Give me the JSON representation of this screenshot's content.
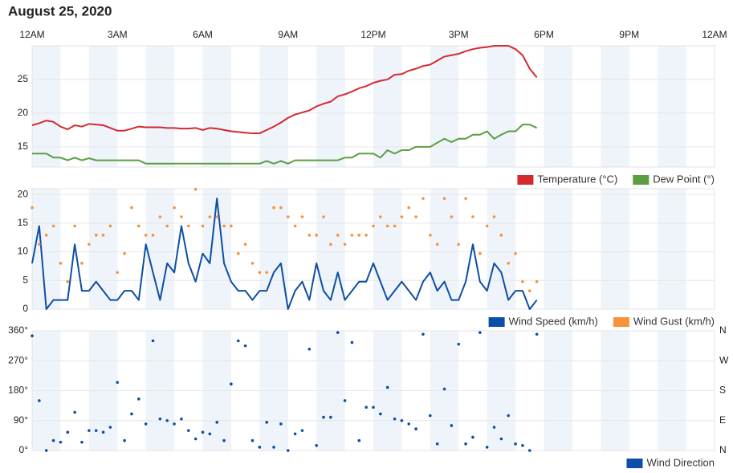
{
  "chart_data": [
    {
      "type": "line",
      "title": "August 25, 2020",
      "xlim": [
        0,
        24
      ],
      "xticks": [
        {
          "value": 0,
          "label": "12AM"
        },
        {
          "value": 3,
          "label": "3AM"
        },
        {
          "value": 6,
          "label": "6AM"
        },
        {
          "value": 9,
          "label": "9AM"
        },
        {
          "value": 12,
          "label": "12PM"
        },
        {
          "value": 15,
          "label": "3PM"
        },
        {
          "value": 18,
          "label": "6PM"
        },
        {
          "value": 21,
          "label": "9PM"
        },
        {
          "value": 24,
          "label": "12AM"
        }
      ],
      "ylim": [
        12,
        30
      ],
      "yticks": [
        15,
        20,
        25
      ],
      "grid": true,
      "legend": "bottom-right",
      "x": [
        0,
        0.25,
        0.5,
        0.75,
        1,
        1.25,
        1.5,
        1.75,
        2,
        2.25,
        2.5,
        2.75,
        3,
        3.25,
        3.5,
        3.75,
        4,
        4.25,
        4.5,
        4.75,
        5,
        5.25,
        5.5,
        5.75,
        6,
        6.25,
        6.5,
        6.75,
        7,
        7.25,
        7.5,
        7.75,
        8,
        8.25,
        8.5,
        8.75,
        9,
        9.25,
        9.5,
        9.75,
        10,
        10.25,
        10.5,
        10.75,
        11,
        11.25,
        11.5,
        11.75,
        12,
        12.25,
        12.5,
        12.75,
        13,
        13.25,
        13.5,
        13.75,
        14,
        14.25,
        14.5,
        14.75,
        15,
        15.25,
        15.5,
        15.75,
        16,
        16.25,
        16.5,
        16.75,
        17,
        17.25,
        17.5,
        17.75
      ],
      "series": [
        {
          "name": "Temperature (°C)",
          "color": "#d42a2f",
          "type": "line",
          "values": [
            18.2,
            18.5,
            18.9,
            18.7,
            18.0,
            17.6,
            18.2,
            18.0,
            18.4,
            18.3,
            18.2,
            17.8,
            17.4,
            17.4,
            17.7,
            18.0,
            17.9,
            17.9,
            17.9,
            17.8,
            17.8,
            17.7,
            17.7,
            17.8,
            17.5,
            17.8,
            17.7,
            17.5,
            17.3,
            17.2,
            17.1,
            17.0,
            17.0,
            17.5,
            18.0,
            18.6,
            19.3,
            19.8,
            20.1,
            20.4,
            21.0,
            21.4,
            21.7,
            22.5,
            22.8,
            23.2,
            23.7,
            24.0,
            24.5,
            24.8,
            25.0,
            25.7,
            25.8,
            26.3,
            26.6,
            27.0,
            27.2,
            27.8,
            28.4,
            28.6,
            28.8,
            29.2,
            29.5,
            29.7,
            29.8,
            30.0,
            30.0,
            30.0,
            29.5,
            28.6,
            26.6,
            25.3
          ]
        },
        {
          "name": "Dew Point (°)",
          "color": "#5a9e44",
          "type": "line",
          "values": [
            14,
            14,
            14,
            13.4,
            13.4,
            13,
            13.4,
            13,
            13.3,
            13,
            13,
            13,
            13,
            13,
            13,
            13,
            12.5,
            12.5,
            12.5,
            12.5,
            12.5,
            12.5,
            12.5,
            12.5,
            12.5,
            12.5,
            12.5,
            12.5,
            12.5,
            12.5,
            12.5,
            12.5,
            12.5,
            12.9,
            12.5,
            12.9,
            12.5,
            13,
            13,
            13,
            13,
            13,
            13,
            13,
            13.4,
            13.4,
            14,
            14,
            14,
            13.4,
            14.5,
            14,
            14.5,
            14.5,
            15,
            15,
            15,
            15.6,
            16.2,
            15.7,
            16.2,
            16.2,
            16.8,
            16.8,
            17.3,
            16.2,
            16.8,
            17.3,
            17.3,
            18.3,
            18.3,
            17.8
          ]
        }
      ]
    },
    {
      "type": "line",
      "xlim": [
        0,
        24
      ],
      "ylim": [
        0,
        21
      ],
      "yticks": [
        0,
        5,
        10,
        15,
        20
      ],
      "grid": true,
      "legend": "bottom-right",
      "x": [
        0,
        0.25,
        0.5,
        0.75,
        1,
        1.25,
        1.5,
        1.75,
        2,
        2.25,
        2.5,
        2.75,
        3,
        3.25,
        3.5,
        3.75,
        4,
        4.25,
        4.5,
        4.75,
        5,
        5.25,
        5.5,
        5.75,
        6,
        6.25,
        6.5,
        6.75,
        7,
        7.25,
        7.5,
        7.75,
        8,
        8.25,
        8.5,
        8.75,
        9,
        9.25,
        9.5,
        9.75,
        10,
        10.25,
        10.5,
        10.75,
        11,
        11.25,
        11.5,
        11.75,
        12,
        12.25,
        12.5,
        12.75,
        13,
        13.25,
        13.5,
        13.75,
        14,
        14.25,
        14.5,
        14.75,
        15,
        15.25,
        15.5,
        15.75,
        16,
        16.25,
        16.5,
        16.75,
        17,
        17.25,
        17.5,
        17.75
      ],
      "series": [
        {
          "name": "Wind Speed (km/h)",
          "color": "#0d4ea6",
          "type": "line",
          "values": [
            8,
            14.5,
            0,
            1.6,
            1.6,
            1.6,
            11.3,
            3.2,
            3.2,
            4.8,
            3.2,
            1.6,
            1.6,
            3.2,
            3.2,
            1.6,
            11.3,
            6.4,
            1.6,
            8,
            6.4,
            14.5,
            8,
            4.8,
            9.7,
            8,
            19.3,
            8,
            4.8,
            3.2,
            3.2,
            1.6,
            3.2,
            3.2,
            6.4,
            8,
            0,
            3.2,
            4.8,
            1.6,
            8,
            3.2,
            1.6,
            6.4,
            1.6,
            3.2,
            4.8,
            4.8,
            8,
            4.8,
            1.6,
            3.2,
            4.8,
            3.2,
            1.6,
            4.8,
            6.4,
            3.2,
            4.8,
            1.6,
            1.6,
            4.8,
            11.3,
            4.8,
            3.2,
            8,
            6.4,
            1.6,
            3.2,
            3.2,
            0,
            1.6
          ]
        },
        {
          "name": "Wind Gust (km/h)",
          "color": "#f7923a",
          "type": "scatter",
          "values": [
            17.7,
            11.3,
            12.9,
            14.5,
            8,
            4.8,
            14.5,
            8,
            11.3,
            12.9,
            12.9,
            14.5,
            6.4,
            9.7,
            17.7,
            14.5,
            12.9,
            12.9,
            16.1,
            14.5,
            17.7,
            16.1,
            14.5,
            20.9,
            14.5,
            16.1,
            16.1,
            14.5,
            14.5,
            9.7,
            11.3,
            8,
            6.4,
            6.4,
            17.7,
            17.7,
            16.1,
            14.5,
            16.1,
            12.9,
            12.9,
            16.1,
            11.3,
            12.9,
            11.3,
            12.9,
            12.9,
            12.9,
            14.5,
            16.1,
            14.5,
            14.5,
            16.1,
            17.7,
            16.1,
            19.3,
            12.9,
            11.3,
            19.3,
            16.1,
            11.3,
            19.3,
            16.1,
            9.7,
            14.5,
            16.1,
            12.9,
            8,
            9.7,
            4.8,
            3.2,
            4.8
          ]
        }
      ]
    },
    {
      "type": "line",
      "xlim": [
        0,
        24
      ],
      "ylim": [
        0,
        360
      ],
      "yticks": [
        {
          "value": 0,
          "label": "0°"
        },
        {
          "value": 90,
          "label": "90°"
        },
        {
          "value": 180,
          "label": "180°"
        },
        {
          "value": 270,
          "label": "270°"
        },
        {
          "value": 360,
          "label": "360°"
        }
      ],
      "y2lim": [
        0,
        360
      ],
      "y2ticks": [
        {
          "value": 0,
          "label": "N"
        },
        {
          "value": 90,
          "label": "E"
        },
        {
          "value": 180,
          "label": "S"
        },
        {
          "value": 270,
          "label": "W"
        },
        {
          "value": 360,
          "label": "N"
        }
      ],
      "grid": true,
      "legend": "bottom-right",
      "x": [
        0,
        0.25,
        0.5,
        0.75,
        1,
        1.25,
        1.5,
        1.75,
        2,
        2.25,
        2.5,
        2.75,
        3,
        3.25,
        3.5,
        3.75,
        4,
        4.25,
        4.5,
        4.75,
        5,
        5.25,
        5.5,
        5.75,
        6,
        6.25,
        6.5,
        6.75,
        7,
        7.25,
        7.5,
        7.75,
        8,
        8.25,
        8.5,
        8.75,
        9,
        9.25,
        9.5,
        9.75,
        10,
        10.25,
        10.5,
        10.75,
        11,
        11.25,
        11.5,
        11.75,
        12,
        12.25,
        12.5,
        12.75,
        13,
        13.25,
        13.5,
        13.75,
        14,
        14.25,
        14.5,
        14.75,
        15,
        15.25,
        15.5,
        15.75,
        16,
        16.25,
        16.5,
        16.75,
        17,
        17.25,
        17.5,
        17.75
      ],
      "series": [
        {
          "name": "Wind Direction",
          "color": "#0d4ea6",
          "type": "scatter",
          "values": [
            345,
            150,
            0,
            30,
            25,
            55,
            115,
            25,
            60,
            60,
            55,
            70,
            205,
            30,
            110,
            155,
            80,
            330,
            95,
            90,
            80,
            95,
            60,
            35,
            55,
            50,
            85,
            30,
            200,
            330,
            315,
            30,
            10,
            85,
            10,
            80,
            0,
            50,
            60,
            305,
            15,
            100,
            100,
            355,
            150,
            325,
            30,
            130,
            130,
            110,
            190,
            95,
            90,
            80,
            65,
            350,
            105,
            20,
            185,
            75,
            320,
            20,
            40,
            355,
            10,
            70,
            35,
            105,
            20,
            15,
            0,
            350
          ]
        }
      ]
    }
  ]
}
